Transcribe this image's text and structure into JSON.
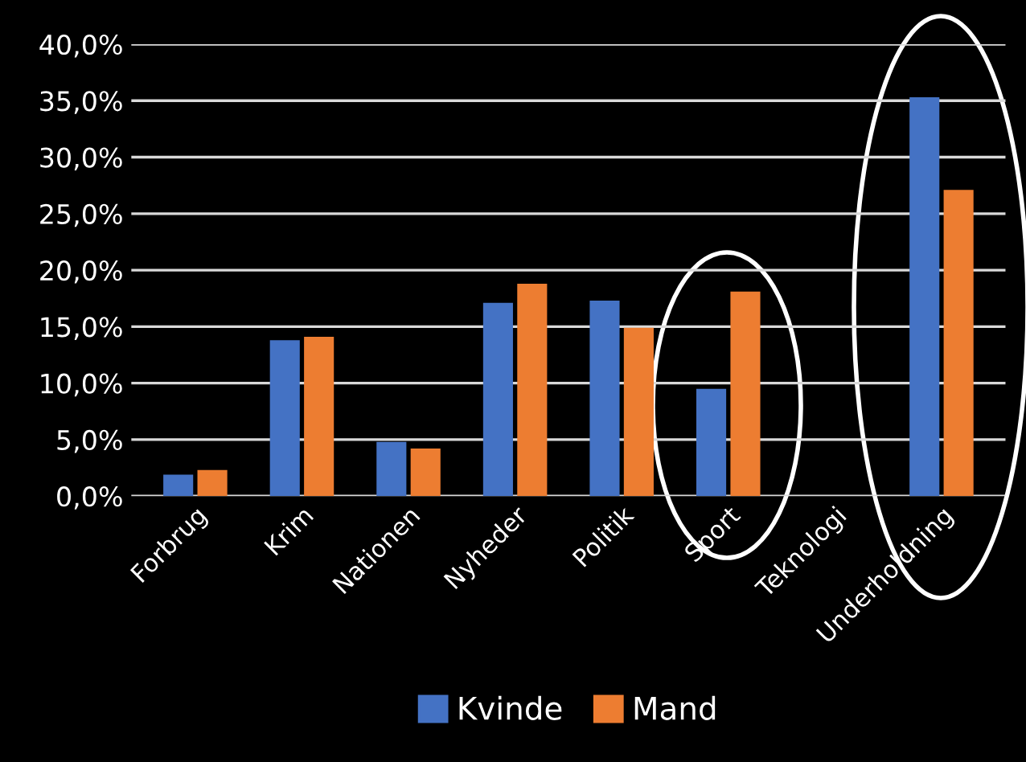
{
  "chart_data": {
    "type": "bar",
    "categories": [
      "Forbrug",
      "Krim",
      "Nationen",
      "Nyheder",
      "Politik",
      "Sport",
      "Teknologi",
      "Underholdning"
    ],
    "series": [
      {
        "name": "Kvinde",
        "color": "#4472c4",
        "values": [
          1.9,
          13.8,
          4.8,
          17.1,
          17.3,
          9.5,
          0,
          35.3
        ]
      },
      {
        "name": "Mand",
        "color": "#ed7d31",
        "values": [
          2.3,
          14.1,
          4.2,
          18.8,
          14.9,
          18.1,
          0,
          27.1
        ]
      }
    ],
    "ylim": [
      0,
      40
    ],
    "yticks": [
      {
        "value": 0,
        "label": "0,0%"
      },
      {
        "value": 5,
        "label": "5,0%"
      },
      {
        "value": 10,
        "label": "10,0%"
      },
      {
        "value": 15,
        "label": "15,0%"
      },
      {
        "value": 20,
        "label": "20,0%"
      },
      {
        "value": 25,
        "label": "25,0%"
      },
      {
        "value": 30,
        "label": "30,0%"
      },
      {
        "value": 35,
        "label": "35,0%"
      },
      {
        "value": 40,
        "label": "40,0%"
      }
    ],
    "grid": "y",
    "legend": "bottom"
  }
}
